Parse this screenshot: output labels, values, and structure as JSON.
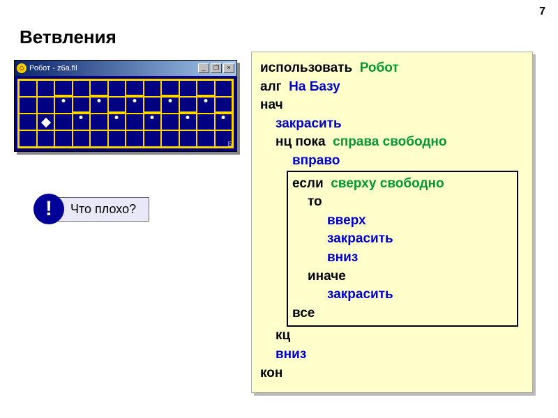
{
  "page_number": "7",
  "title": "Ветвления",
  "robot_window": {
    "caption": "Робот - z6a.fil",
    "icon_glyph": "☺",
    "buttons": {
      "min": "_",
      "max": "❐",
      "close": "×"
    },
    "grid": {
      "cols": 12,
      "rows": 4
    },
    "dots_row1": [
      2,
      4,
      6,
      8,
      10
    ],
    "dots_row2": [
      3,
      5,
      7,
      9,
      11
    ],
    "robot_cell": {
      "row": 2,
      "col": 1
    },
    "base_label": "Б",
    "colors": {
      "field": "#000080",
      "grid": "#ffd700"
    }
  },
  "callout": {
    "badge": "!",
    "text": "Что плохо?"
  },
  "code": {
    "use": "использовать",
    "robot": "Робот",
    "alg": "алг",
    "alg_name": "На  Базу",
    "begin": "нач",
    "paint": "закрасить",
    "loop_begin": "нц  пока",
    "cond_right_free": "справа  свободно",
    "cmd_right": "вправо",
    "if": "если",
    "cond_top_free": "сверху  свободно",
    "then": "то",
    "cmd_up": "вверх",
    "cmd_down": "вниз",
    "else": "иначе",
    "endif": "все",
    "loop_end": "кц",
    "end": "кон"
  },
  "styling": {
    "code_bg": "#ffffcc",
    "blue": "#0000cc",
    "green": "#009933",
    "black": "#000000",
    "callout_badge_bg": "#000099",
    "callout_box_bg": "#e8e8f8"
  }
}
